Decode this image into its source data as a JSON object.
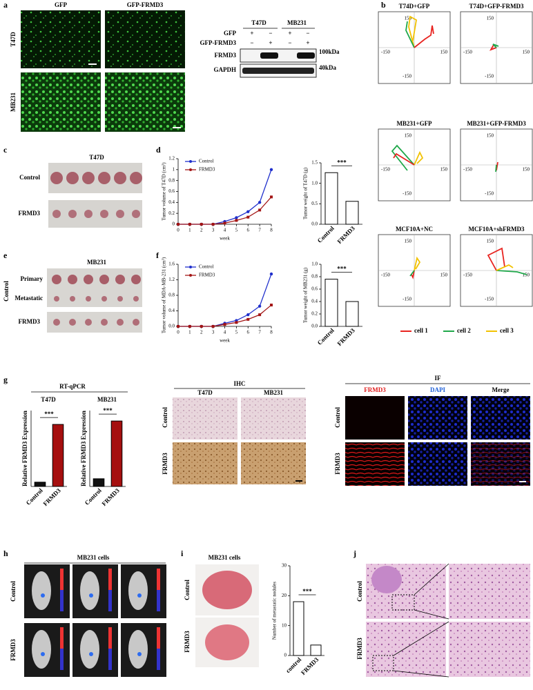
{
  "panels": {
    "a": {
      "label": "a",
      "columns": [
        "GFP",
        "GFP-FRMD3"
      ],
      "rows": [
        "T47D",
        "MB231"
      ],
      "blot": {
        "cell_lines": [
          "T47D",
          "MB231"
        ],
        "conditions": [
          "GFP",
          "GFP-FRMD3"
        ],
        "signs": [
          [
            "+",
            "−",
            "+",
            "−"
          ],
          [
            "−",
            "+",
            "−",
            "+"
          ]
        ],
        "bands": [
          "FRMD3",
          "GAPDH"
        ],
        "markers": [
          "100kDa",
          "40kDa"
        ]
      }
    },
    "b": {
      "label": "b",
      "plots": [
        "T74D+GFP",
        "T74D+GFP-FRMD3",
        "MB231+GFP",
        "MB231+GFP-FRMD3",
        "MCF10A+NC",
        "MCF10A+shFRMD3"
      ],
      "axis_labels": {
        "top": "150",
        "left": "-150",
        "right": "150",
        "bottom": "-150"
      },
      "legend": [
        {
          "name": "cell 1",
          "color": "#e8231f"
        },
        {
          "name": "cell 2",
          "color": "#1fa84a"
        },
        {
          "name": "cell 3",
          "color": "#f2c200"
        }
      ]
    },
    "c": {
      "label": "c",
      "title": "T47D",
      "rows": [
        "Control",
        "FRMD3"
      ]
    },
    "d": {
      "label": "d",
      "line": {
        "type": "line",
        "xlabel": "week",
        "ylabel": "Tumor volume of T47D (cm³)",
        "x": [
          0,
          1,
          2,
          3,
          4,
          5,
          6,
          7,
          8
        ],
        "xlim": [
          0,
          8
        ],
        "xticks": [
          0,
          1,
          2,
          3,
          4,
          5,
          6,
          7,
          8
        ],
        "ylim": [
          0,
          1.2
        ],
        "yticks": [
          0,
          0.2,
          0.4,
          0.6,
          0.8,
          1,
          {
            "value": 1.2,
            "label": "1.2"
          }
        ],
        "series": [
          {
            "name": "Control",
            "color": "#1f2fcc",
            "values": [
              0,
              0,
              0,
              0,
              0.05,
              0.12,
              0.23,
              0.4,
              1.0
            ]
          },
          {
            "name": "FRMD3",
            "color": "#a31515",
            "values": [
              0,
              0,
              0,
              0,
              0.02,
              0.07,
              0.13,
              0.26,
              0.5
            ]
          }
        ]
      },
      "bar": {
        "type": "bar",
        "ylabel": "Tumor weight of T47D (g)",
        "categories": [
          "Control",
          "FRMD3"
        ],
        "values": [
          1.26,
          0.56
        ],
        "ylim": [
          0,
          1.5
        ],
        "yticks": [
          {
            "value": 0,
            "label": "0.0"
          },
          0.5,
          {
            "value": 1,
            "label": "1.0"
          },
          1.5
        ],
        "annotation": "***"
      }
    },
    "e": {
      "label": "e",
      "title": "MB231",
      "group": "Control",
      "rows": [
        "Primary",
        "Metastatic",
        "FRMD3"
      ]
    },
    "f": {
      "label": "f",
      "line": {
        "type": "line",
        "xlabel": "week",
        "ylabel": "Tumor volume of MDA-MB-231 (cm³)",
        "x": [
          0,
          1,
          2,
          3,
          4,
          5,
          6,
          7,
          8
        ],
        "xlim": [
          0,
          8
        ],
        "xticks": [
          0,
          1,
          2,
          3,
          4,
          5,
          6,
          7,
          8
        ],
        "ylim": [
          0,
          1.6
        ],
        "yticks": [
          {
            "value": 0,
            "label": "0.0"
          },
          0.4,
          0.8,
          1.2,
          1.6
        ],
        "series": [
          {
            "name": "Control",
            "color": "#1f2fcc",
            "values": [
              0,
              0,
              0,
              0,
              0.08,
              0.15,
              0.3,
              0.52,
              1.35
            ]
          },
          {
            "name": "FRMD3",
            "color": "#a31515",
            "values": [
              0,
              0,
              0,
              0,
              0.05,
              0.1,
              0.18,
              0.3,
              0.55
            ]
          }
        ]
      },
      "bar": {
        "type": "bar",
        "ylabel": "Tumor weight of MB231 (g)",
        "categories": [
          "Control",
          "FRMD3"
        ],
        "values": [
          0.76,
          0.4
        ],
        "ylim": [
          0,
          1
        ],
        "yticks": [
          {
            "value": 0,
            "label": "0.0"
          },
          0.2,
          0.4,
          0.6,
          0.8,
          {
            "value": 1,
            "label": "1.0"
          }
        ],
        "annotation": "***"
      }
    },
    "g": {
      "label": "g",
      "rtqpcr": {
        "title": "RT-qPCR",
        "ylabel": "Relative FRMD3  Expression",
        "charts": [
          {
            "title": "T47D",
            "categories": [
              "Control",
              "FRMD3"
            ],
            "values": [
              0.1,
              1.45
            ],
            "annotation": "***"
          },
          {
            "title": "MB231",
            "categories": [
              "Control",
              "FRMD3"
            ],
            "values": [
              0.18,
              1.53
            ],
            "annotation": "***"
          }
        ]
      },
      "ihc": {
        "title": "IHC",
        "columns": [
          "T47D",
          "MB231"
        ],
        "rows": [
          "Control",
          "FRMD3"
        ]
      },
      "if": {
        "title": "IF",
        "columns": [
          "FRMD3",
          "DAPI",
          "Merge"
        ],
        "rows": [
          "Control",
          "FRMD3"
        ]
      }
    },
    "h": {
      "label": "h",
      "title": "MB231 cells",
      "rows": [
        "Control",
        "FRMD3"
      ]
    },
    "i": {
      "label": "i",
      "title": "MB231 cells",
      "rows": [
        "Control",
        "FRMD3"
      ],
      "bar": {
        "type": "bar",
        "ylabel": "Number of metastatic nodules",
        "categories": [
          "control",
          "FRMD3"
        ],
        "values": [
          18,
          3.5
        ],
        "ylim": [
          0,
          30
        ],
        "yticks": [
          0,
          10,
          20,
          30
        ],
        "annotation": "***"
      }
    },
    "j": {
      "label": "j",
      "rows": [
        "Control",
        "FRMD3"
      ]
    }
  }
}
